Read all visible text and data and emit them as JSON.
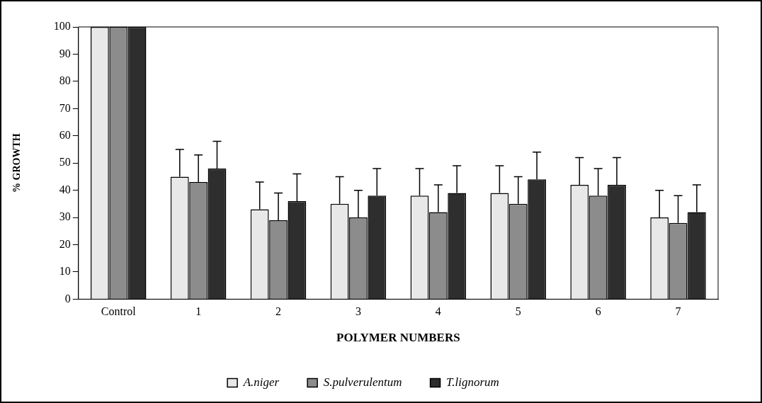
{
  "chart_data": {
    "type": "bar",
    "xlabel": "POLYMER NUMBERS",
    "ylabel": "% GROWTH",
    "categories": [
      "Control",
      "1",
      "2",
      "3",
      "4",
      "5",
      "6",
      "7"
    ],
    "series": [
      {
        "name": "A.niger",
        "color": "#e8e8e8",
        "values": [
          100,
          45,
          33,
          35,
          38,
          39,
          42,
          30
        ],
        "errors": [
          null,
          [
            45,
            55
          ],
          [
            33,
            43
          ],
          [
            35,
            45
          ],
          [
            38,
            48
          ],
          [
            39,
            49
          ],
          [
            42,
            52
          ],
          [
            30,
            40
          ]
        ]
      },
      {
        "name": "S.pulverulentum",
        "color": "#8c8c8c",
        "values": [
          100,
          43,
          29,
          30,
          32,
          35,
          38,
          28
        ],
        "errors": [
          null,
          [
            43,
            53
          ],
          [
            29,
            39
          ],
          [
            30,
            40
          ],
          [
            32,
            42
          ],
          [
            35,
            45
          ],
          [
            38,
            48
          ],
          [
            28,
            38
          ]
        ]
      },
      {
        "name": "T.lignorum",
        "color": "#2e2e2e",
        "values": [
          100,
          48,
          36,
          38,
          39,
          44,
          42,
          32
        ],
        "errors": [
          null,
          [
            48,
            58
          ],
          [
            36,
            46
          ],
          [
            38,
            48
          ],
          [
            39,
            49
          ],
          [
            44,
            54
          ],
          [
            42,
            52
          ],
          [
            32,
            42
          ]
        ]
      }
    ],
    "ylim": [
      0,
      100
    ],
    "yticks": [
      0,
      10,
      20,
      30,
      40,
      50,
      60,
      70,
      80,
      90,
      100
    ],
    "grid": false,
    "legend": "bottom"
  }
}
